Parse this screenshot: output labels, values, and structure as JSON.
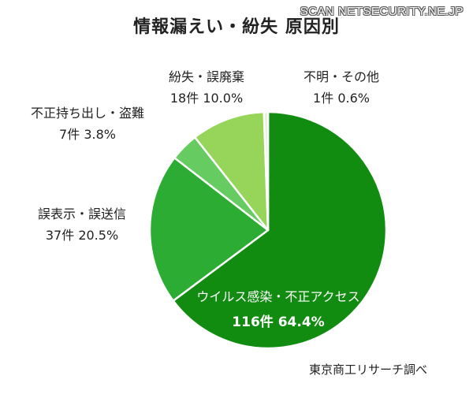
{
  "watermark": "SCAN NETSECURITY.NE.JP",
  "source": "東京商工リサーチ調べ",
  "chart_data": {
    "type": "pie",
    "title": "情報漏えい・紛失 原因別",
    "slices": [
      {
        "name": "ウイルス感染・不正アクセス",
        "count": 116,
        "count_label": "116件",
        "percent": 64.4,
        "percent_label": "64.4%",
        "color": "#118c11"
      },
      {
        "name": "誤表示・誤送信",
        "count": 37,
        "count_label": "37件",
        "percent": 20.5,
        "percent_label": "20.5%",
        "color": "#2cac32"
      },
      {
        "name": "不正持ち出し・盗難",
        "count": 7,
        "count_label": "7件",
        "percent": 3.8,
        "percent_label": "3.8%",
        "color": "#66cc61"
      },
      {
        "name": "紛失・誤廃棄",
        "count": 18,
        "count_label": "18件",
        "percent": 10.0,
        "percent_label": "10.0%",
        "color": "#97d55a"
      },
      {
        "name": "不明・その他",
        "count": 1,
        "count_label": "1件",
        "percent": 0.6,
        "percent_label": "0.6%",
        "color": "#e6f1d4"
      }
    ]
  }
}
